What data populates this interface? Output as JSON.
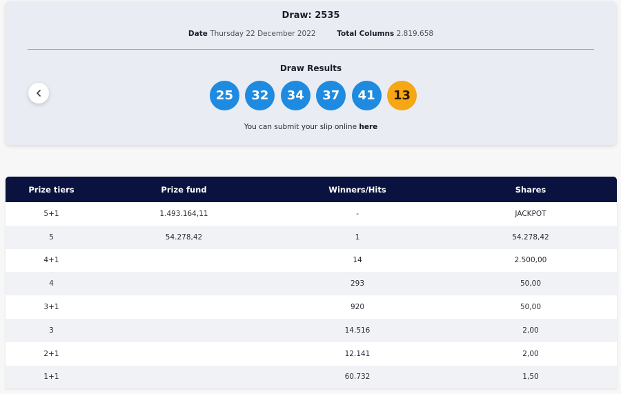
{
  "draw": {
    "title": "Draw: 2535",
    "date_label": "Date",
    "date_value": "Thursday 22 December 2022",
    "columns_label": "Total Columns",
    "columns_value": "2.819.658",
    "results_title": "Draw Results",
    "numbers": [
      "25",
      "32",
      "34",
      "37",
      "41"
    ],
    "bonus_number": "13",
    "prev_icon": "chevron-left-icon",
    "submit_text": "You can submit your slip online",
    "submit_link": "here",
    "colors": {
      "ball": "#1e8be0",
      "bonus": "#f7a614",
      "header": "#0a1240"
    }
  },
  "table": {
    "headers": [
      "Prize tiers",
      "Prize fund",
      "Winners/Hits",
      "Shares"
    ],
    "rows": [
      {
        "tier": "5+1",
        "fund": "1.493.164,11",
        "winners": "-",
        "shares": "JACKPOT"
      },
      {
        "tier": "5",
        "fund": "54.278,42",
        "winners": "1",
        "shares": "54.278,42"
      },
      {
        "tier": "4+1",
        "fund": "",
        "winners": "14",
        "shares": "2.500,00"
      },
      {
        "tier": "4",
        "fund": "",
        "winners": "293",
        "shares": "50,00"
      },
      {
        "tier": "3+1",
        "fund": "",
        "winners": "920",
        "shares": "50,00"
      },
      {
        "tier": "3",
        "fund": "",
        "winners": "14.516",
        "shares": "2,00"
      },
      {
        "tier": "2+1",
        "fund": "",
        "winners": "12.141",
        "shares": "2,00"
      },
      {
        "tier": "1+1",
        "fund": "",
        "winners": "60.732",
        "shares": "1,50"
      }
    ]
  }
}
